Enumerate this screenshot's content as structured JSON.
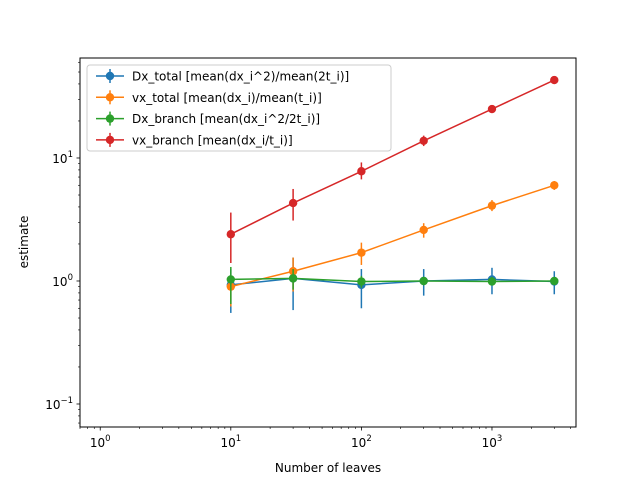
{
  "chart_data": {
    "type": "line",
    "xscale": "log",
    "yscale": "log",
    "xlim": [
      0.7,
      4400
    ],
    "ylim": [
      0.065,
      65
    ],
    "xlabel": "Number of leaves",
    "ylabel": "estimate",
    "grid": false,
    "legend_position": "top-left",
    "x_ticks": [
      {
        "value": 1,
        "base": "10",
        "exp": "0"
      },
      {
        "value": 10,
        "base": "10",
        "exp": "1"
      },
      {
        "value": 100,
        "base": "10",
        "exp": "2"
      },
      {
        "value": 1000,
        "base": "10",
        "exp": "3"
      }
    ],
    "y_ticks": [
      {
        "value": 0.1,
        "base": "10",
        "exp": "−1"
      },
      {
        "value": 1,
        "base": "10",
        "exp": "0"
      },
      {
        "value": 10,
        "base": "10",
        "exp": "1"
      }
    ],
    "x": [
      10,
      30,
      100,
      300,
      1000,
      3000
    ],
    "series": [
      {
        "name": "Dx_total [mean(dx_i^2)/mean(2t_i)]",
        "color": "#1f77b4",
        "values": [
          0.93,
          1.05,
          0.93,
          1.0,
          1.03,
          0.99
        ],
        "err_low": [
          0.55,
          0.58,
          0.6,
          0.76,
          0.78,
          0.78
        ],
        "err_high": [
          1.25,
          1.55,
          1.25,
          1.25,
          1.28,
          1.2
        ]
      },
      {
        "name": "vx_total [mean(dx_i)/mean(t_i)]",
        "color": "#ff7f0e",
        "values": [
          0.9,
          1.2,
          1.7,
          2.6,
          4.1,
          6.0
        ],
        "err_low": [
          0.62,
          0.82,
          1.35,
          2.25,
          3.7,
          5.5
        ],
        "err_high": [
          1.1,
          1.55,
          2.05,
          2.95,
          4.55,
          6.5
        ]
      },
      {
        "name": "Dx_branch [mean(dx_i^2/2t_i)]",
        "color": "#2ca02c",
        "values": [
          1.03,
          1.05,
          0.99,
          1.0,
          0.99,
          1.0
        ],
        "err_low": [
          0.65,
          0.85,
          0.88,
          0.92,
          0.92,
          0.94
        ],
        "err_high": [
          1.3,
          1.25,
          1.1,
          1.08,
          1.08,
          1.06
        ]
      },
      {
        "name": "vx_branch [mean(dx_i/t_i)]",
        "color": "#d62728",
        "values": [
          2.4,
          4.3,
          7.8,
          13.8,
          25.0,
          43.0
        ],
        "err_low": [
          1.4,
          3.1,
          6.7,
          12.5,
          23.5,
          41.0
        ],
        "err_high": [
          3.6,
          5.6,
          9.2,
          15.2,
          26.5,
          45.0
        ]
      }
    ]
  }
}
